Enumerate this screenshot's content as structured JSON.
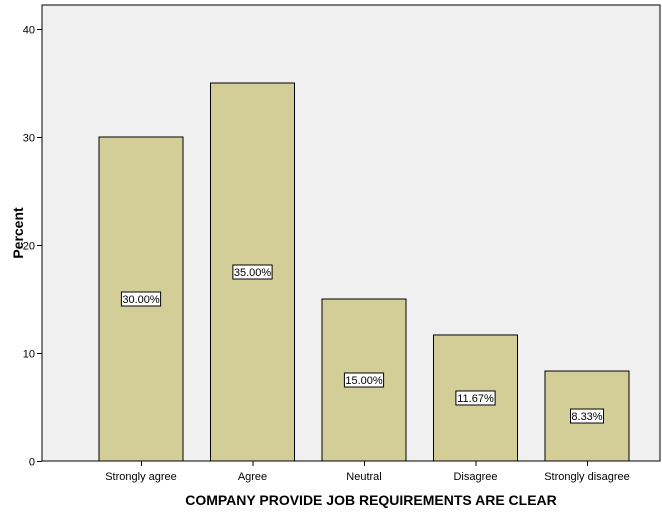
{
  "chart_data": {
    "type": "bar",
    "categories": [
      "Strongly agree",
      "Agree",
      "Neutral",
      "Disagree",
      "Strongly disagree"
    ],
    "values": [
      30.0,
      35.0,
      15.0,
      11.67,
      8.33
    ],
    "data_labels": [
      "30.00%",
      "35.00%",
      "15.00%",
      "11.67%",
      "8.33%"
    ],
    "xlabel": "COMPANY PROVIDE JOB REQUIREMENTS ARE CLEAR",
    "ylabel": "Percent",
    "ylim": [
      0,
      40
    ],
    "yticks": [
      "0",
      "10",
      "20",
      "30",
      "40"
    ],
    "grid": false,
    "colors": {
      "plot_background": "#F0F0F0",
      "bar_fill": "#D3CE97",
      "bar_stroke": "#000000",
      "label_background": "#FFFFFF"
    }
  }
}
